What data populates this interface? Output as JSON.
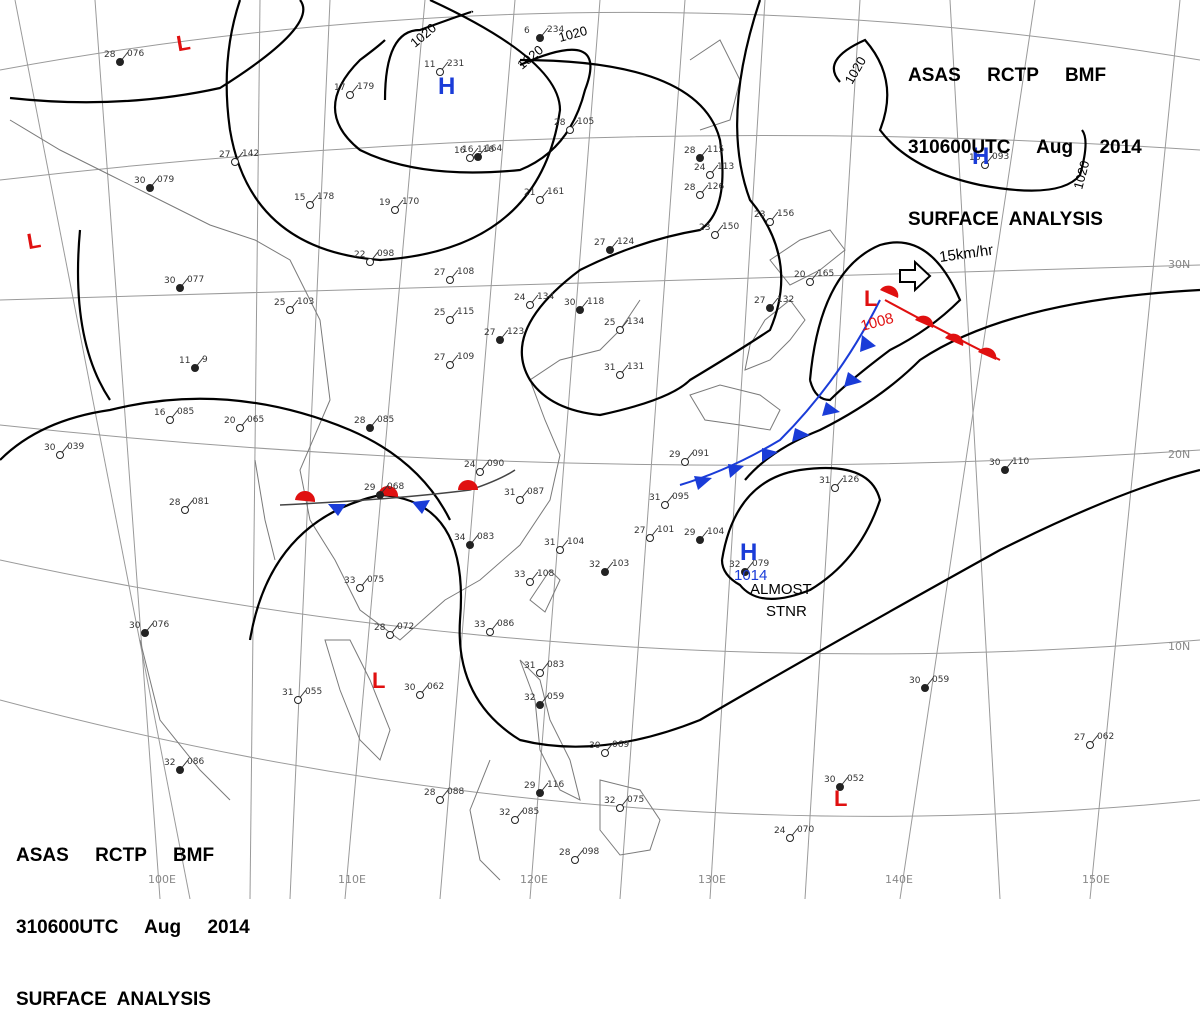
{
  "header": {
    "line1": "ASAS     RCTP     BMF",
    "line2": "310600UTC     Aug     2014",
    "line3": "SURFACE  ANALYSIS"
  },
  "latitude_labels": [
    "30N",
    "20N",
    "10N"
  ],
  "longitude_labels": [
    "100E",
    "110E",
    "120E",
    "130E",
    "140E",
    "150E"
  ],
  "isobar_labels": [
    "1020",
    "1020",
    "1020",
    "1020",
    "1020"
  ],
  "systems": [
    {
      "type": "H",
      "color": "#1a3cd8"
    },
    {
      "type": "H",
      "color": "#1a3cd8"
    },
    {
      "type": "H",
      "color": "#1a3cd8",
      "value": "1014"
    },
    {
      "type": "L",
      "color": "#e01010",
      "value": "1008"
    },
    {
      "type": "L",
      "color": "#e01010"
    },
    {
      "type": "L",
      "color": "#e01010"
    },
    {
      "type": "L",
      "color": "#e01010"
    },
    {
      "type": "L",
      "color": "#e01010"
    }
  ],
  "annotations": {
    "motion": "15km/hr",
    "stationary_line1": "ALMOST",
    "stationary_line2": "STNR"
  },
  "stations": [
    {
      "t": "28",
      "p": "076"
    },
    {
      "t": "17",
      "p": "179"
    },
    {
      "t": "11",
      "p": "231"
    },
    {
      "t": "6",
      "p": "234"
    },
    {
      "t": "16",
      "p": "116"
    },
    {
      "t": "27",
      "p": "142"
    },
    {
      "t": "30",
      "p": "079"
    },
    {
      "t": "15",
      "p": "178"
    },
    {
      "t": "19",
      "p": "170"
    },
    {
      "t": "16",
      "p": "164"
    },
    {
      "t": "21",
      "p": "161"
    },
    {
      "t": "28",
      "p": "105"
    },
    {
      "t": "28",
      "p": "115"
    },
    {
      "t": "28",
      "p": "126"
    },
    {
      "t": "23",
      "p": "150"
    },
    {
      "t": "27",
      "p": "124"
    },
    {
      "t": "22",
      "p": "098"
    },
    {
      "t": "27",
      "p": "108"
    },
    {
      "t": "30",
      "p": "077"
    },
    {
      "t": "25",
      "p": "103"
    },
    {
      "t": "24",
      "p": "134"
    },
    {
      "t": "30",
      "p": "118"
    },
    {
      "t": "25",
      "p": "115"
    },
    {
      "t": "27",
      "p": "109"
    },
    {
      "t": "27",
      "p": "123"
    },
    {
      "t": "25",
      "p": "134"
    },
    {
      "t": "31",
      "p": "131"
    },
    {
      "t": "11",
      "p": "9"
    },
    {
      "t": "20",
      "p": "065"
    },
    {
      "t": "16",
      "p": "085"
    },
    {
      "t": "28",
      "p": "085"
    },
    {
      "t": "30",
      "p": "039"
    },
    {
      "t": "24",
      "p": "090"
    },
    {
      "t": "29",
      "p": "068"
    },
    {
      "t": "31",
      "p": "087"
    },
    {
      "t": "28",
      "p": "081"
    },
    {
      "t": "34",
      "p": "083"
    },
    {
      "t": "31",
      "p": "104"
    },
    {
      "t": "33",
      "p": "108"
    },
    {
      "t": "32",
      "p": "103"
    },
    {
      "t": "31",
      "p": "095"
    },
    {
      "t": "27",
      "p": "101"
    },
    {
      "t": "29",
      "p": "104"
    },
    {
      "t": "29",
      "p": "091"
    },
    {
      "t": "31",
      "p": "126"
    },
    {
      "t": "30",
      "p": "110"
    },
    {
      "t": "33",
      "p": "075"
    },
    {
      "t": "28",
      "p": "072"
    },
    {
      "t": "30",
      "p": "076"
    },
    {
      "t": "33",
      "p": "086"
    },
    {
      "t": "31",
      "p": "083"
    },
    {
      "t": "32",
      "p": "059"
    },
    {
      "t": "30",
      "p": "062"
    },
    {
      "t": "31",
      "p": "055"
    },
    {
      "t": "32",
      "p": "086"
    },
    {
      "t": "28",
      "p": "088"
    },
    {
      "t": "32",
      "p": "085"
    },
    {
      "t": "29",
      "p": "116"
    },
    {
      "t": "30",
      "p": "069"
    },
    {
      "t": "32",
      "p": "075"
    },
    {
      "t": "30",
      "p": "052"
    },
    {
      "t": "24",
      "p": "070"
    },
    {
      "t": "28",
      "p": "098"
    },
    {
      "t": "30",
      "p": "059"
    },
    {
      "t": "27",
      "p": "062"
    },
    {
      "t": "20",
      "p": "165"
    },
    {
      "t": "27",
      "p": "132"
    },
    {
      "t": "16",
      "p": "093"
    },
    {
      "t": "23",
      "p": "156"
    },
    {
      "t": "32",
      "p": "079"
    },
    {
      "t": "24",
      "p": "113"
    }
  ]
}
